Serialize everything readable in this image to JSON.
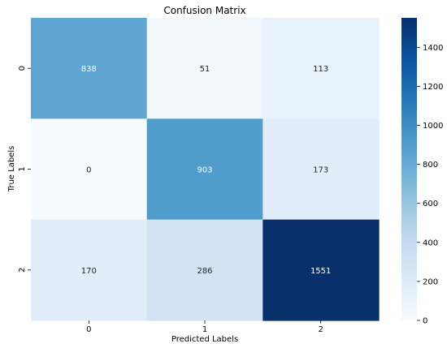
{
  "chart_data": {
    "type": "heatmap",
    "title": "Confusion Matrix",
    "xlabel": "Predicted Labels",
    "ylabel": "True Labels",
    "x_categories": [
      "0",
      "1",
      "2"
    ],
    "y_categories": [
      "0",
      "1",
      "2"
    ],
    "values": [
      [
        838,
        51,
        113
      ],
      [
        0,
        903,
        173
      ],
      [
        170,
        286,
        1551
      ]
    ],
    "colorbar": {
      "min": 0,
      "max": 1551,
      "ticks": [
        0,
        200,
        400,
        600,
        800,
        1000,
        1200,
        1400
      ],
      "colormap": "Blues"
    },
    "text_colors": {
      "dark_background_text": "#ffffff",
      "light_background_text": "#262626"
    }
  }
}
